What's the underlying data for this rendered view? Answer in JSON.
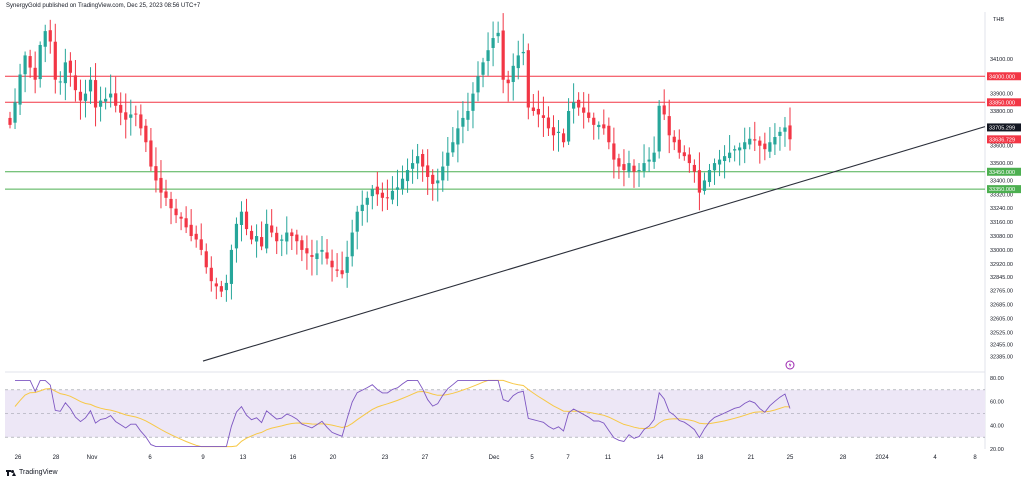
{
  "header": "SynergyGold published on TradingView.com, Dec 25, 2023 08:56 UTC+7",
  "footer": "TradingView",
  "chart_data": [
    {
      "type": "candlestick",
      "currency": "THB",
      "ylim": [
        32320,
        34370
      ],
      "y_ticks": [
        34100,
        33900,
        33800,
        33600,
        33500,
        33400,
        33320,
        33240,
        33160,
        33080,
        33000,
        32920,
        32845,
        32765,
        32685,
        32605,
        32525,
        32455,
        32385
      ],
      "x_ticks": [
        "26",
        "28",
        "Nov",
        "6",
        "9",
        "13",
        "16",
        "20",
        "23",
        "27",
        "Dec",
        "5",
        "7",
        "11",
        "14",
        "18",
        "21",
        "25",
        "28",
        "2024",
        "4",
        "8"
      ],
      "horizontal_levels": [
        {
          "value": 34000,
          "label": "34000.000",
          "color": "#f23645"
        },
        {
          "value": 33850,
          "label": "33850.000",
          "color": "#f23645"
        },
        {
          "value": 33450,
          "label": "33450.000",
          "color": "#4caf50"
        },
        {
          "value": 33350,
          "label": "33350.000",
          "color": "#4caf50"
        }
      ],
      "price_tags": [
        {
          "value": 33705.299,
          "label": "33705.299",
          "color": "#131722"
        },
        {
          "value": 33636.729,
          "label": "33636.729",
          "color": "#f23645"
        }
      ],
      "trendline": {
        "from": {
          "x": "Nov 9",
          "y": 32360
        },
        "to": {
          "x": "Dec 27",
          "y": 33710
        }
      },
      "close": [
        33720,
        33850,
        34010,
        34120,
        34050,
        33980,
        34180,
        34260,
        34200,
        33980,
        33970,
        34080,
        34020,
        33920,
        33860,
        33900,
        33980,
        33820,
        33860,
        33870,
        33900,
        33830,
        33790,
        33750,
        33780,
        33780,
        33700,
        33620,
        33480,
        33400,
        33330,
        33300,
        33240,
        33200,
        33180,
        33130,
        33080,
        33060,
        33000,
        32900,
        32820,
        32790,
        32760,
        32810,
        33000,
        33150,
        33220,
        33120,
        33060,
        33080,
        33020,
        33150,
        33100,
        33050,
        33060,
        33100,
        33080,
        33050,
        33000,
        32980,
        32960,
        32980,
        33000,
        32950,
        32900,
        32880,
        32860,
        32960,
        33100,
        33220,
        33260,
        33300,
        33350,
        33320,
        33300,
        33300,
        33340,
        33360,
        33410,
        33460,
        33500,
        33540,
        33480,
        33420,
        33380,
        33400,
        33480,
        33560,
        33620,
        33700,
        33760,
        33800,
        33900,
        34000,
        34080,
        34150,
        34220,
        34250,
        33980,
        33960,
        34060,
        34120,
        34140,
        33820,
        33800,
        33780,
        33760,
        33700,
        33660,
        33680,
        33620,
        33800,
        33850,
        33820,
        33790,
        33760,
        33720,
        33720,
        33700,
        33620,
        33520,
        33480,
        33460,
        33500,
        33450,
        33460,
        33500,
        33520,
        33560,
        33830,
        33780,
        33660,
        33620,
        33560,
        33540,
        33500,
        33450,
        33330,
        33400,
        33460,
        33500,
        33520,
        33540,
        33560,
        33580,
        33590,
        33620,
        33640,
        33630,
        33600,
        33580,
        33620,
        33650,
        33680,
        33705,
        33637
      ],
      "rsi": {
        "ylim": [
          20,
          80
        ],
        "ticks": [
          80,
          60,
          40,
          20
        ],
        "bands": [
          70,
          50,
          30
        ],
        "colors": {
          "rsi": "#7e57c2",
          "signal": "#f7c846",
          "band_fill": "#ede7f6"
        }
      },
      "colors": {
        "up": "#26a69a",
        "down": "#f23645",
        "trendline": "#2a2e39"
      }
    }
  ]
}
